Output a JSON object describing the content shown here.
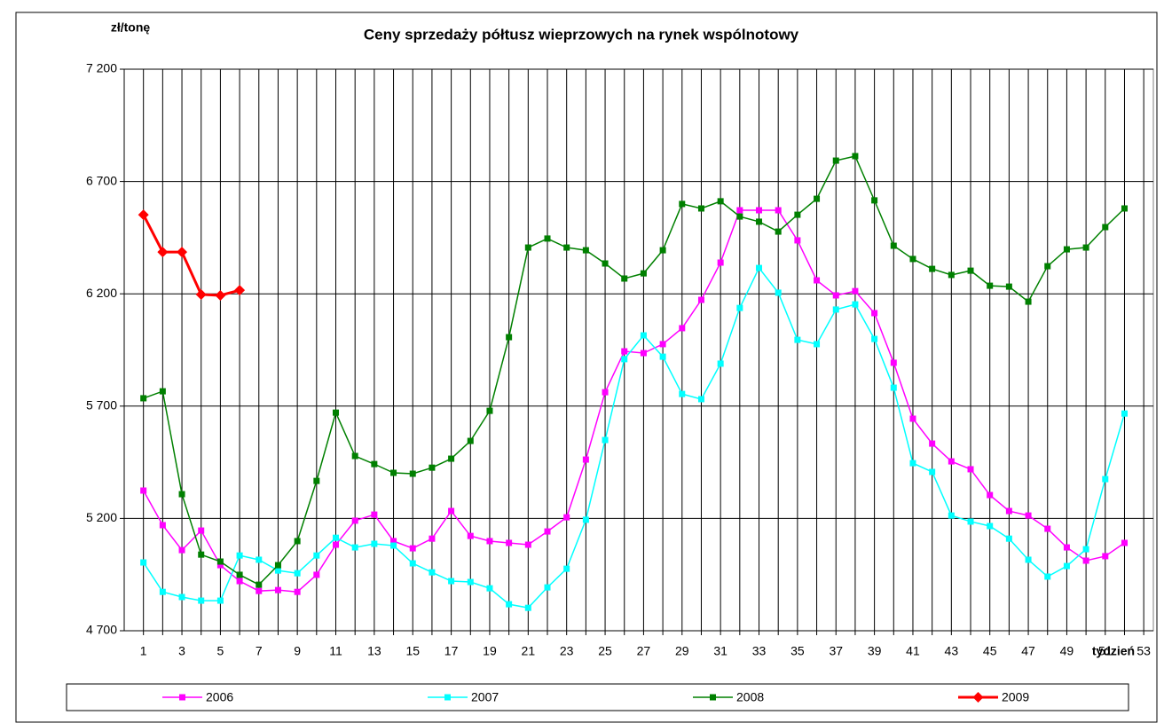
{
  "chart_data": {
    "type": "line",
    "title": "Ceny sprzedaży półtusz wieprzowych na rynek wspólnotowy",
    "y_label": "zł/tonę",
    "x_label": "tydzień",
    "x": [
      1,
      2,
      3,
      4,
      5,
      6,
      7,
      8,
      9,
      10,
      11,
      12,
      13,
      14,
      15,
      16,
      17,
      18,
      19,
      20,
      21,
      22,
      23,
      24,
      25,
      26,
      27,
      28,
      29,
      30,
      31,
      32,
      33,
      34,
      35,
      36,
      37,
      38,
      39,
      40,
      41,
      42,
      43,
      44,
      45,
      46,
      47,
      48,
      49,
      50,
      51,
      52
    ],
    "xlim": [
      0,
      53.5
    ],
    "xticks": [
      1,
      3,
      5,
      7,
      9,
      11,
      13,
      15,
      17,
      19,
      21,
      23,
      25,
      27,
      29,
      31,
      33,
      35,
      37,
      39,
      41,
      43,
      45,
      47,
      49,
      51,
      53
    ],
    "xminorticks": [
      2,
      4,
      6,
      8,
      10,
      12,
      14,
      16,
      18,
      20,
      22,
      24,
      26,
      28,
      30,
      32,
      34,
      36,
      38,
      40,
      42,
      44,
      46,
      48,
      50,
      52
    ],
    "ylim": [
      4700,
      7200
    ],
    "yticks": [
      {
        "value": 4700,
        "label": "4 700"
      },
      {
        "value": 5200,
        "label": "5 200"
      },
      {
        "value": 5700,
        "label": "5 700"
      },
      {
        "value": 6200,
        "label": "6 200"
      },
      {
        "value": 6700,
        "label": "6 700"
      },
      {
        "value": 7200,
        "label": "7 200"
      }
    ],
    "grid": true,
    "legend": "bottom",
    "series": [
      {
        "name": "2006",
        "color": "#ff00ff",
        "marker": "square",
        "values": [
          5324,
          5170,
          5059,
          5146,
          4992,
          4921,
          4877,
          4881,
          4873,
          4949,
          5083,
          5190,
          5217,
          5099,
          5067,
          5110,
          5233,
          5122,
          5099,
          5091,
          5083,
          5142,
          5205,
          5462,
          5762,
          5944,
          5936,
          5976,
          6047,
          6173,
          6339,
          6572,
          6572,
          6572,
          6438,
          6260,
          6193,
          6212,
          6114,
          5893,
          5644,
          5533,
          5454,
          5419,
          5304,
          5233,
          5213,
          5154,
          5071,
          5012,
          5032,
          5091
        ]
      },
      {
        "name": "2007",
        "color": "#00ffff",
        "marker": "square",
        "values": [
          5004,
          4873,
          4850,
          4834,
          4834,
          5035,
          5016,
          4968,
          4956,
          5035,
          5114,
          5071,
          5087,
          5079,
          5000,
          4960,
          4921,
          4917,
          4889,
          4818,
          4802,
          4893,
          4976,
          5194,
          5549,
          5909,
          6015,
          5920,
          5754,
          5731,
          5889,
          6137,
          6315,
          6205,
          5995,
          5976,
          6130,
          6153,
          5999,
          5782,
          5446,
          5407,
          5213,
          5186,
          5166,
          5110,
          5016,
          4941,
          4988,
          5063,
          5375,
          5667
        ]
      },
      {
        "name": "2008",
        "color": "#008000",
        "marker": "square",
        "values": [
          5735,
          5766,
          5308,
          5039,
          5008,
          4949,
          4905,
          4992,
          5099,
          5367,
          5671,
          5478,
          5442,
          5403,
          5399,
          5426,
          5466,
          5545,
          5679,
          6007,
          6406,
          6446,
          6406,
          6394,
          6335,
          6268,
          6291,
          6394,
          6600,
          6580,
          6612,
          6544,
          6521,
          6477,
          6552,
          6623,
          6793,
          6813,
          6616,
          6414,
          6355,
          6311,
          6284,
          6303,
          6236,
          6232,
          6165,
          6323,
          6398,
          6406,
          6497,
          6580
        ]
      },
      {
        "name": "2009",
        "color": "#ff0000",
        "marker": "diamond",
        "values": [
          6552,
          6386,
          6386,
          6197,
          6193,
          6216,
          null,
          null,
          null,
          null,
          null,
          null,
          null,
          null,
          null,
          null,
          null,
          null,
          null,
          null,
          null,
          null,
          null,
          null,
          null,
          null,
          null,
          null,
          null,
          null,
          null,
          null,
          null,
          null,
          null,
          null,
          null,
          null,
          null,
          null,
          null,
          null,
          null,
          null,
          null,
          null,
          null,
          null,
          null,
          null,
          null,
          null
        ]
      }
    ]
  }
}
